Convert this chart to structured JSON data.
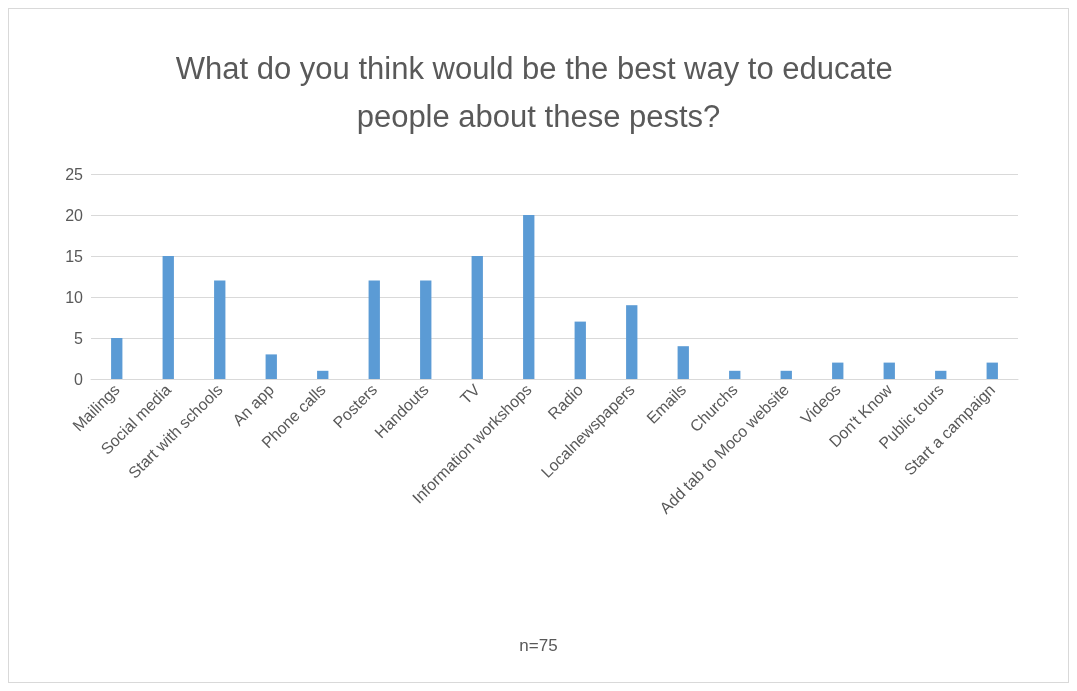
{
  "chart_data": {
    "type": "bar",
    "title": "What do you think would be the best way to educate people about these pests?",
    "annotations": [
      "n=75"
    ],
    "categories": [
      "Mailings",
      "Social media",
      "Start with schools",
      "An app",
      "Phone calls",
      "Posters",
      "Handouts",
      "TV",
      "Information workshops",
      "Radio",
      "Localnewspapers",
      "Emails",
      "Churchs",
      "Add tab to Moco website",
      "Videos",
      "Don't Know",
      "Public tours",
      "Start a campaign"
    ],
    "values": [
      5,
      15,
      12,
      3,
      1,
      12,
      12,
      15,
      20,
      7,
      9,
      4,
      1,
      1,
      2,
      2,
      1,
      2
    ],
    "color": "#5b9bd5",
    "ylim": [
      0,
      25
    ],
    "yticks": [
      0,
      5,
      10,
      15,
      20,
      25
    ],
    "grid": "y"
  }
}
